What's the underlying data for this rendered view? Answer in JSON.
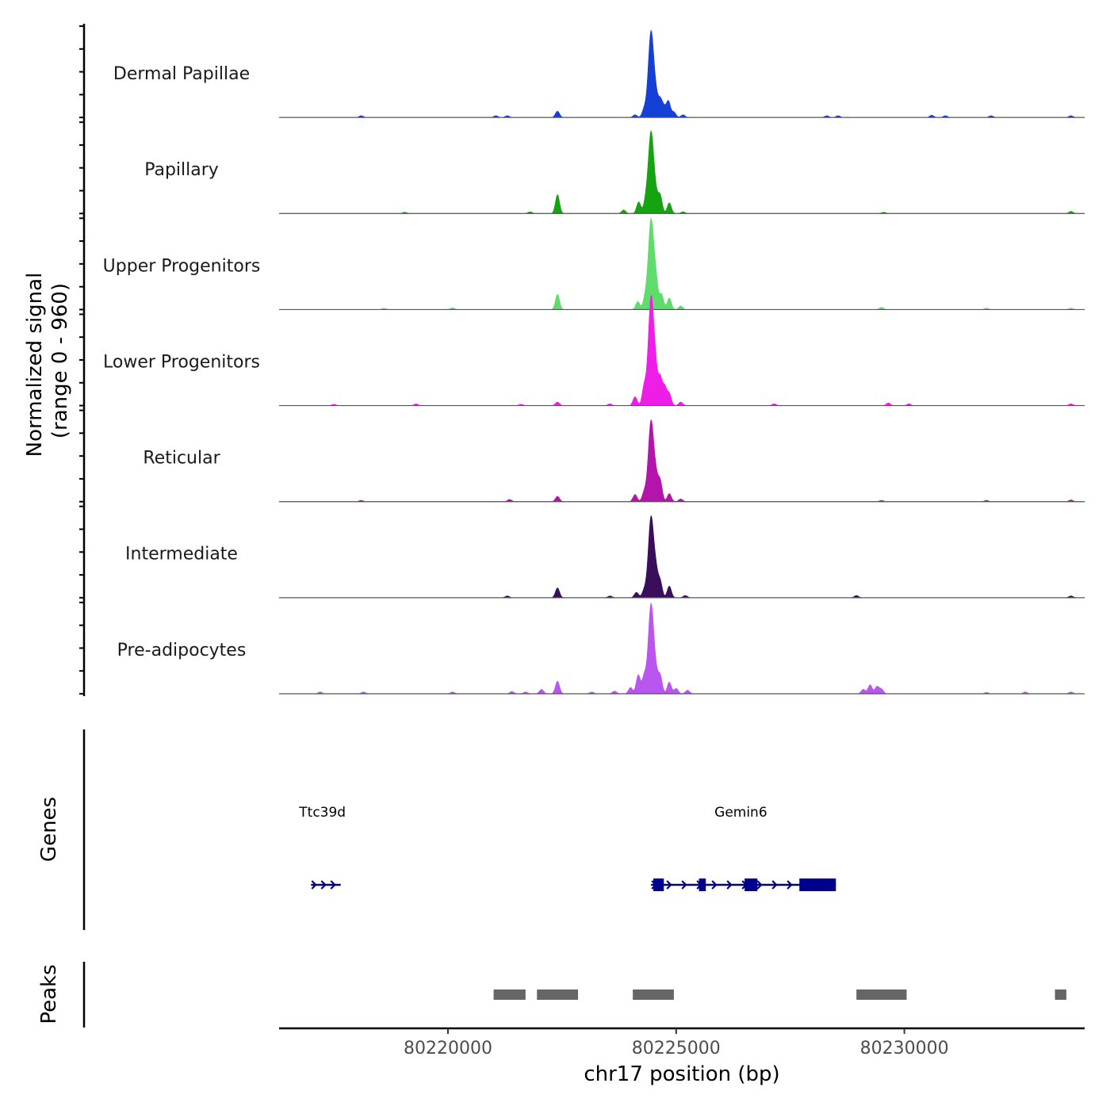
{
  "chart_data": {
    "type": "area",
    "title": "",
    "ylabel_line1": "Normalized signal",
    "ylabel_line2": "(range 0 - 960)",
    "ylim": [
      0,
      960
    ],
    "xlabel": "chr17 position (bp)",
    "xlim": [
      80216300,
      80233950
    ],
    "x_ticks": [
      80220000,
      80225000,
      80230000
    ],
    "x_tick_labels": [
      "80220000",
      "80225000",
      "80230000"
    ],
    "tracks": [
      {
        "name": "Dermal Papillae",
        "color": "#1540d8",
        "peaks": [
          [
            80218100,
            20
          ],
          [
            80221050,
            20
          ],
          [
            80221300,
            20
          ],
          [
            80222400,
            70
          ],
          [
            80224100,
            30
          ],
          [
            80224300,
            90
          ],
          [
            80224450,
            960
          ],
          [
            80224560,
            180
          ],
          [
            80224650,
            180
          ],
          [
            80224730,
            100
          ],
          [
            80224830,
            180
          ],
          [
            80224950,
            60
          ],
          [
            80225150,
            30
          ],
          [
            80228300,
            20
          ],
          [
            80228550,
            20
          ],
          [
            80230600,
            25
          ],
          [
            80230900,
            20
          ],
          [
            80231900,
            20
          ],
          [
            80233650,
            20
          ]
        ]
      },
      {
        "name": "Papillary",
        "color": "#16a312",
        "peaks": [
          [
            80219050,
            15
          ],
          [
            80221800,
            20
          ],
          [
            80222400,
            210
          ],
          [
            80223850,
            40
          ],
          [
            80224180,
            130
          ],
          [
            80224330,
            120
          ],
          [
            80224450,
            910
          ],
          [
            80224560,
            140
          ],
          [
            80224650,
            200
          ],
          [
            80224850,
            120
          ],
          [
            80225150,
            20
          ],
          [
            80229550,
            15
          ],
          [
            80233650,
            25
          ]
        ]
      },
      {
        "name": "Upper Progenitors",
        "color": "#5fdc6c",
        "peaks": [
          [
            80218600,
            15
          ],
          [
            80220100,
            20
          ],
          [
            80222400,
            170
          ],
          [
            80224160,
            90
          ],
          [
            80224320,
            120
          ],
          [
            80224450,
            1000
          ],
          [
            80224560,
            270
          ],
          [
            80224680,
            170
          ],
          [
            80224850,
            130
          ],
          [
            80225100,
            40
          ],
          [
            80229500,
            25
          ],
          [
            80231800,
            15
          ],
          [
            80233650,
            15
          ]
        ]
      },
      {
        "name": "Lower Progenitors",
        "color": "#ee1ee8",
        "peaks": [
          [
            80217500,
            15
          ],
          [
            80219300,
            20
          ],
          [
            80221600,
            15
          ],
          [
            80222400,
            40
          ],
          [
            80223550,
            20
          ],
          [
            80224100,
            100
          ],
          [
            80224300,
            210
          ],
          [
            80224450,
            1200
          ],
          [
            80224550,
            300
          ],
          [
            80224650,
            300
          ],
          [
            80224750,
            200
          ],
          [
            80224850,
            130
          ],
          [
            80225100,
            40
          ],
          [
            80227150,
            20
          ],
          [
            80229650,
            30
          ],
          [
            80230100,
            20
          ],
          [
            80233650,
            20
          ]
        ]
      },
      {
        "name": "Reticular",
        "color": "#b314ab",
        "peaks": [
          [
            80218100,
            15
          ],
          [
            80221350,
            25
          ],
          [
            80222400,
            60
          ],
          [
            80224100,
            80
          ],
          [
            80224300,
            100
          ],
          [
            80224450,
            900
          ],
          [
            80224560,
            210
          ],
          [
            80224650,
            230
          ],
          [
            80224850,
            90
          ],
          [
            80225100,
            30
          ],
          [
            80229500,
            15
          ],
          [
            80231800,
            15
          ],
          [
            80233650,
            20
          ]
        ]
      },
      {
        "name": "Intermediate",
        "color": "#3a0e5a",
        "peaks": [
          [
            80221300,
            20
          ],
          [
            80222400,
            110
          ],
          [
            80223550,
            20
          ],
          [
            80224130,
            60
          ],
          [
            80224300,
            80
          ],
          [
            80224450,
            900
          ],
          [
            80224560,
            230
          ],
          [
            80224650,
            180
          ],
          [
            80224850,
            130
          ],
          [
            80225200,
            25
          ],
          [
            80228950,
            25
          ],
          [
            80233650,
            20
          ]
        ]
      },
      {
        "name": "Pre-adipocytes",
        "color": "#bb55f0",
        "peaks": [
          [
            80217200,
            20
          ],
          [
            80218150,
            20
          ],
          [
            80220100,
            20
          ],
          [
            80221400,
            25
          ],
          [
            80221700,
            20
          ],
          [
            80222050,
            50
          ],
          [
            80222400,
            140
          ],
          [
            80223150,
            20
          ],
          [
            80223650,
            30
          ],
          [
            80224000,
            70
          ],
          [
            80224170,
            210
          ],
          [
            80224300,
            190
          ],
          [
            80224450,
            1000
          ],
          [
            80224560,
            160
          ],
          [
            80224650,
            200
          ],
          [
            80224850,
            130
          ],
          [
            80225000,
            60
          ],
          [
            80225250,
            40
          ],
          [
            80229100,
            50
          ],
          [
            80229250,
            100
          ],
          [
            80229400,
            80
          ],
          [
            80229500,
            50
          ],
          [
            80231800,
            15
          ],
          [
            80232650,
            20
          ],
          [
            80233650,
            20
          ]
        ]
      }
    ],
    "genes_label": "Genes",
    "genes": [
      {
        "name": "Ttc39d",
        "strand": "+",
        "start": 80217000,
        "end": 80217650,
        "exons": []
      },
      {
        "name": "Gemin6",
        "strand": "+",
        "start": 80224450,
        "end": 80228500,
        "exons": [
          [
            80224500,
            80224730
          ],
          [
            80225500,
            80225650
          ],
          [
            80226500,
            80226780
          ],
          [
            80227700,
            80228500
          ]
        ]
      }
    ],
    "peaks_label": "Peaks",
    "peak_regions": [
      [
        80221000,
        80221700
      ],
      [
        80221950,
        80222850
      ],
      [
        80224050,
        80224950
      ],
      [
        80228950,
        80230050
      ],
      [
        80233300,
        80233550
      ]
    ],
    "colors": {
      "gene": "#00008b",
      "peak_region": "#666666",
      "axis": "#000000",
      "baseline": "#555555"
    }
  }
}
